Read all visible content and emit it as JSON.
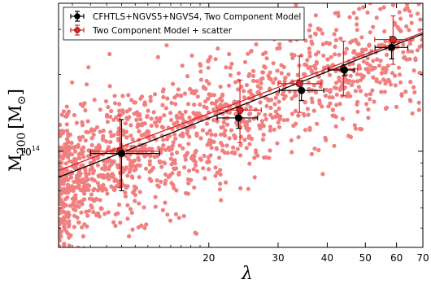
{
  "chart_data": {
    "type": "scatter",
    "xlabel": "λ",
    "ylabel_main": "M",
    "ylabel_sub": "200",
    "ylabel_unit_open": "[M",
    "ylabel_unit_sub": "⊙",
    "ylabel_unit_close": "]",
    "x_scale": "log",
    "y_scale": "log",
    "xlim": [
      8.3,
      70
    ],
    "ylim": [
      42000000000000.0,
      380000000000000.0
    ],
    "x_ticks": [
      20,
      30,
      40,
      50,
      60,
      70
    ],
    "x_tick_labels": [
      "20",
      "30",
      "40",
      "50",
      "60",
      "70"
    ],
    "y_ticks": [
      100000000000000.0
    ],
    "y_tick_label_base": "10",
    "y_tick_label_exp": "14",
    "grid": false,
    "legend_placement": "top-left",
    "series": [
      {
        "name": "CFHTLS+NGVS5+NGVS4, Two Component Model",
        "color": "#000000",
        "points": [
          {
            "x": 12.0,
            "y": 98000000000000.0,
            "xerr": [
              2.0,
              3.0
            ],
            "yerr": [
              28000000000000.0,
              35000000000000.0
            ]
          },
          {
            "x": 23.8,
            "y": 135000000000000.0,
            "xerr": [
              2.8,
              2.8
            ],
            "yerr": [
              12000000000000.0,
              13000000000000.0
            ]
          },
          {
            "x": 34.4,
            "y": 173000000000000.0,
            "xerr": [
              4.2,
              4.8
            ],
            "yerr": [
              15000000000000.0,
              16000000000000.0
            ]
          },
          {
            "x": 44.2,
            "y": 208000000000000.0,
            "xerr": [
              4.0,
              2.6
            ],
            "yerr": [
              10000000000000.0,
              10000000000000.0
            ]
          },
          {
            "x": 58.3,
            "y": 255000000000000.0,
            "xerr": [
              5.4,
              5.8
            ],
            "yerr": [
              25000000000000.0,
              26000000000000.0
            ]
          }
        ],
        "fit": {
          "x": [
            8.3,
            70
          ],
          "y": [
            79000000000000.0,
            288000000000000.0
          ]
        }
      },
      {
        "name": "Two Component Model + scatter",
        "color": "#dd2222",
        "points": [
          {
            "x": 11.9,
            "y": 100000000000000.0,
            "xerr": [
              1.9,
              3.1
            ],
            "yerr": [
              28000000000000.0,
              38000000000000.0
            ]
          },
          {
            "x": 24.0,
            "y": 145000000000000.0,
            "xerr": [
              3.0,
              3.2
            ],
            "yerr": [
              37000000000000.0,
              45000000000000.0
            ]
          },
          {
            "x": 34.0,
            "y": 184000000000000.0,
            "xerr": [
              4.0,
              4.6
            ],
            "yerr": [
              42000000000000.0,
              52000000000000.0
            ]
          },
          {
            "x": 44.0,
            "y": 210000000000000.0,
            "xerr": [
              3.6,
              3.8
            ],
            "yerr": [
              45000000000000.0,
              60000000000000.0
            ]
          },
          {
            "x": 58.8,
            "y": 274000000000000.0,
            "xerr": [
              6.0,
              6.5
            ],
            "yerr": [
              55000000000000.0,
              65000000000000.0
            ]
          }
        ],
        "fit": {
          "x": [
            8.3,
            70
          ],
          "y": [
            84000000000000.0,
            292000000000000.0
          ]
        }
      }
    ],
    "scatter_cloud": {
      "color": "#f08080",
      "count": 1500,
      "x_range": [
        8.3,
        70
      ],
      "center_slope": 0.59,
      "x_ref": 24,
      "y_ref": 140000000000000.0,
      "log10_scatter": 0.13,
      "seed": 7
    }
  }
}
